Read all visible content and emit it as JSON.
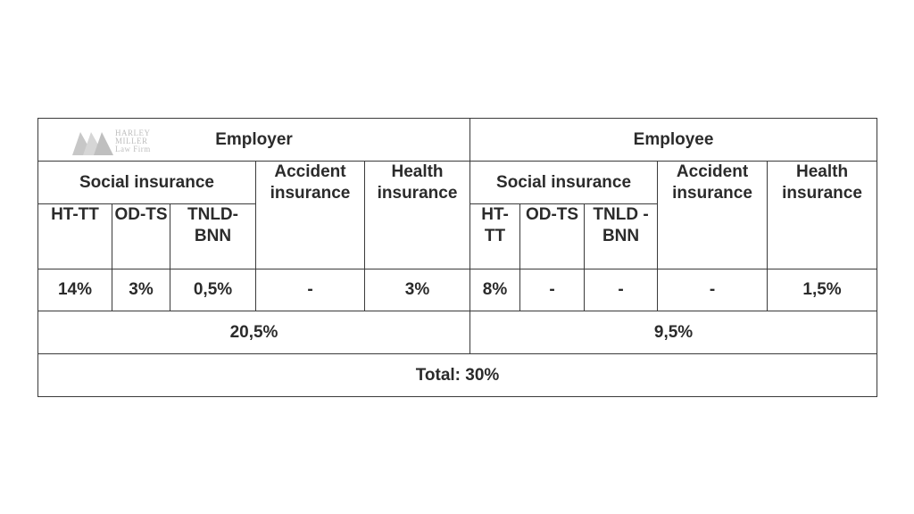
{
  "logo": {
    "line1": "HARLEY",
    "line2": "MILLER",
    "line3": "Law Firm"
  },
  "header": {
    "employer": "Employer",
    "employee": "Employee"
  },
  "employer": {
    "social_insurance": "Social insurance",
    "accident_insurance": "Accident insurance",
    "health_insurance": "Health insurance",
    "sub": [
      "HT-TT",
      "OD-TS",
      "TNLD-BNN"
    ],
    "rates": [
      "14%",
      "3%",
      "0,5%",
      "-",
      "3%"
    ],
    "subtotal": "20,5%"
  },
  "employee": {
    "social_insurance": "Social insurance",
    "accident_insurance": "Accident insurance",
    "health_insurance": "Health insurance",
    "sub": [
      "HT-TT",
      "OD-TS",
      "TNLD -BNN"
    ],
    "rates": [
      "8%",
      "-",
      "-",
      "-",
      "1,5%"
    ],
    "subtotal": "9,5%"
  },
  "total": "Total: 30%"
}
